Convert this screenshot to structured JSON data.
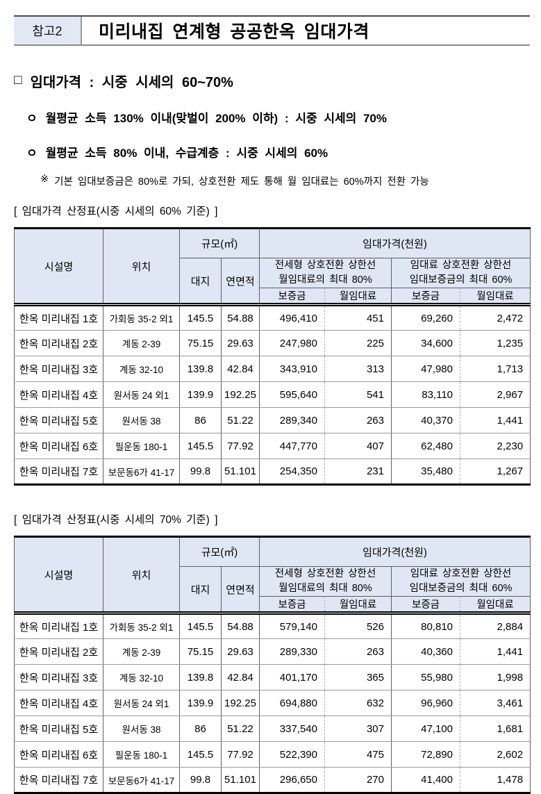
{
  "colors": {
    "table_header_fill": "#dfe6f4",
    "badge_fill": "#e2e9f5"
  },
  "header": {
    "badge": "참고2",
    "title": "미리내집 연계형 공공한옥 임대가격"
  },
  "overview": {
    "heading_marker": "□",
    "heading": "임대가격 : 시중 시세의 60~70%",
    "bullets": [
      {
        "marker": "ㅇ",
        "text": "월평균 소득 130% 이내(맞벌이 200% 이하) : 시중 시세의 70%"
      },
      {
        "marker": "ㅇ",
        "text": "월평균 소득 80% 이내, 수급계층 : 시중 시세의 60%"
      }
    ],
    "note_marker": "※",
    "note": "기본 임대보증금은 80%로 가되, 상호전환 제도 통해 월 임대료는 60%까지 전환 가능"
  },
  "tables": [
    {
      "caption": "[ 임대가격 산정표(시중 시세의 60% 기준) ]",
      "header": {
        "facility": "시설명",
        "location": "위치",
        "size_group": "규모(㎡)",
        "land": "대지",
        "floor_area": "연면적",
        "price_group": "임대가격(천원)",
        "jeonse_group_line1": "전세형 상호전환 상한선",
        "jeonse_group_line2": "월임대료의 최대 80%",
        "rent_group_line1": "임대료 상호전환 상한선",
        "rent_group_line2": "임대보증금의 최대 60%",
        "deposit1": "보증금",
        "monthly1": "월임대료",
        "deposit2": "보증금",
        "monthly2": "월임대료"
      },
      "rows": [
        [
          "한옥 미리내집 1호",
          "가회동 35-2 외1",
          "145.5",
          "54.88",
          "496,410",
          "451",
          "69,260",
          "2,472"
        ],
        [
          "한옥 미리내집 2호",
          "계동 2-39",
          "75.15",
          "29.63",
          "247,980",
          "225",
          "34,600",
          "1,235"
        ],
        [
          "한옥 미리내집 3호",
          "계동 32-10",
          "139.8",
          "42.84",
          "343,910",
          "313",
          "47,980",
          "1,713"
        ],
        [
          "한옥 미리내집 4호",
          "원서동 24 외1",
          "139.9",
          "192.25",
          "595,640",
          "541",
          "83,110",
          "2,967"
        ],
        [
          "한옥 미리내집 5호",
          "원서동 38",
          "86",
          "51.22",
          "289,340",
          "263",
          "40,370",
          "1,441"
        ],
        [
          "한옥 미리내집 6호",
          "필운동 180-1",
          "145.5",
          "77.92",
          "447,770",
          "407",
          "62,480",
          "2,230"
        ],
        [
          "한옥 미리내집 7호",
          "보문동6가 41-17",
          "99.8",
          "51.101",
          "254,350",
          "231",
          "35,480",
          "1,267"
        ]
      ]
    },
    {
      "caption": "[ 임대가격 산정표(시중 시세의 70% 기준) ]",
      "header": {
        "facility": "시설명",
        "location": "위치",
        "size_group": "규모(㎡)",
        "land": "대지",
        "floor_area": "연면적",
        "price_group": "임대가격(천원)",
        "jeonse_group_line1": "전세형 상호전환 상한선",
        "jeonse_group_line2": "월임대료의 최대 80%",
        "rent_group_line1": "임대료 상호전환 상한선",
        "rent_group_line2": "임대보증금의 최대 60%",
        "deposit1": "보증금",
        "monthly1": "월임대료",
        "deposit2": "보증금",
        "monthly2": "월임대료"
      },
      "rows": [
        [
          "한옥 미리내집 1호",
          "가회동 35-2 외1",
          "145.5",
          "54.88",
          "579,140",
          "526",
          "80,810",
          "2,884"
        ],
        [
          "한옥 미리내집 2호",
          "계동 2-39",
          "75.15",
          "29.63",
          "289,330",
          "263",
          "40,360",
          "1,441"
        ],
        [
          "한옥 미리내집 3호",
          "계동 32-10",
          "139.8",
          "42.84",
          "401,170",
          "365",
          "55,980",
          "1,998"
        ],
        [
          "한옥 미리내집 4호",
          "원서동 24 외1",
          "139.9",
          "192.25",
          "694,880",
          "632",
          "96,960",
          "3,461"
        ],
        [
          "한옥 미리내집 5호",
          "원서동 38",
          "86",
          "51.22",
          "337,540",
          "307",
          "47,100",
          "1,681"
        ],
        [
          "한옥 미리내집 6호",
          "필운동 180-1",
          "145.5",
          "77.92",
          "522,390",
          "475",
          "72,890",
          "2,602"
        ],
        [
          "한옥 미리내집 7호",
          "보문동6가 41-17",
          "99.8",
          "51.101",
          "296,650",
          "270",
          "41,400",
          "1,478"
        ]
      ]
    }
  ]
}
